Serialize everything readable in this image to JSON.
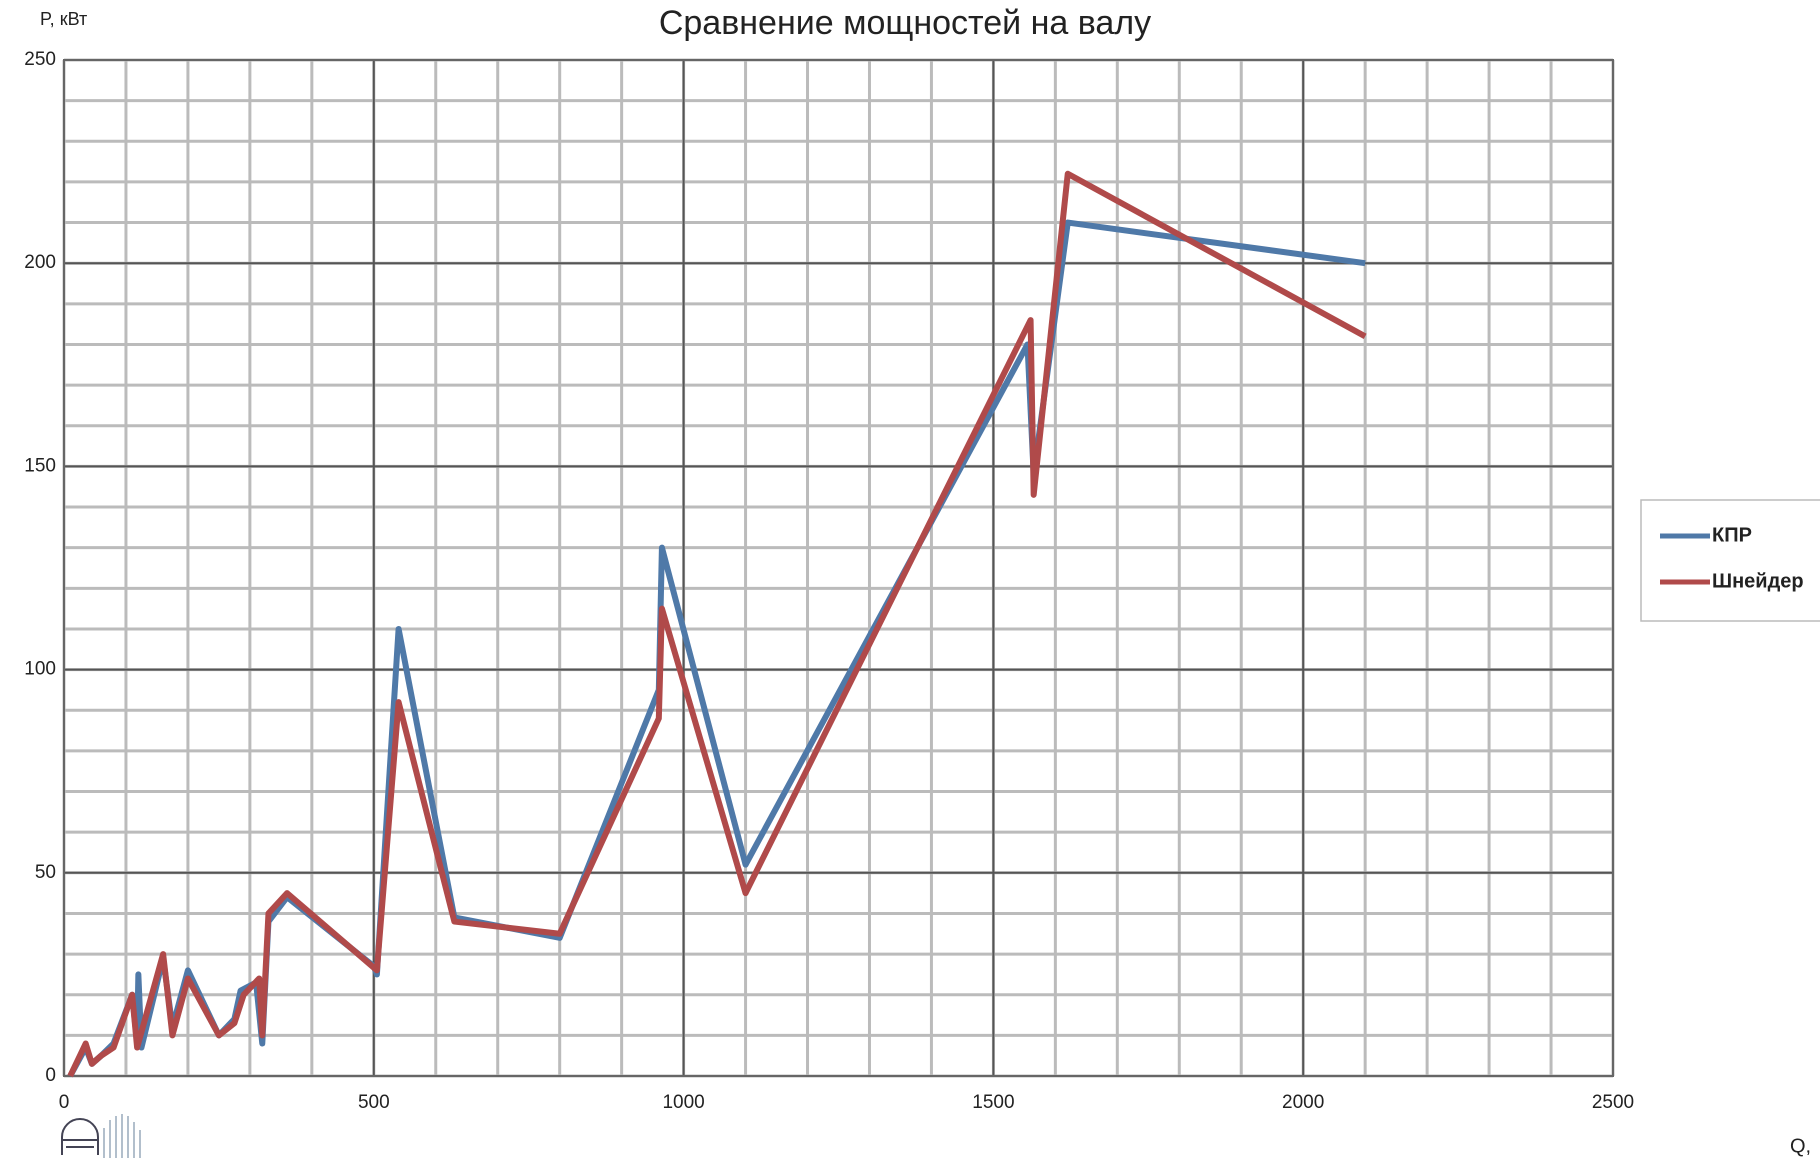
{
  "chart_data": {
    "type": "line",
    "title": "Сравнение мощностей на валу",
    "y_label": "P, кВт",
    "x_label": "Q,",
    "xlim": [
      0,
      2500
    ],
    "xticks": [
      0,
      500,
      1000,
      1500,
      2000,
      2500
    ],
    "ylim": [
      0,
      250
    ],
    "yticks": [
      0,
      50,
      100,
      150,
      200,
      250
    ],
    "grid": true,
    "minor_x_step": 100,
    "minor_y_step": 10,
    "legend": "right",
    "series": [
      {
        "name": "КПР",
        "color": "#4f79a8",
        "x": [
          10,
          35,
          45,
          60,
          80,
          110,
          118,
          120,
          125,
          160,
          175,
          200,
          250,
          275,
          285,
          310,
          320,
          330,
          360,
          500,
          505,
          540,
          630,
          800,
          960,
          965,
          1100,
          1555,
          1565,
          1620,
          2100
        ],
        "values": [
          0,
          7,
          3,
          5,
          8,
          20,
          8,
          25,
          7,
          29,
          12,
          26,
          10,
          14,
          21,
          23,
          8,
          38,
          44,
          27,
          25,
          110,
          39,
          34,
          95,
          130,
          52,
          180,
          148,
          210,
          200
        ]
      },
      {
        "name": "Шнейдер",
        "color": "#b04a4a",
        "x": [
          10,
          35,
          45,
          60,
          80,
          110,
          118,
          160,
          175,
          200,
          250,
          275,
          290,
          315,
          320,
          330,
          360,
          505,
          540,
          630,
          800,
          960,
          965,
          1100,
          1560,
          1565,
          1620,
          2100
        ],
        "values": [
          0,
          8,
          3,
          5,
          7,
          20,
          7,
          30,
          10,
          24,
          10,
          13,
          20,
          24,
          10,
          40,
          45,
          26,
          92,
          38,
          35,
          88,
          115,
          45,
          186,
          143,
          222,
          182
        ]
      }
    ]
  }
}
